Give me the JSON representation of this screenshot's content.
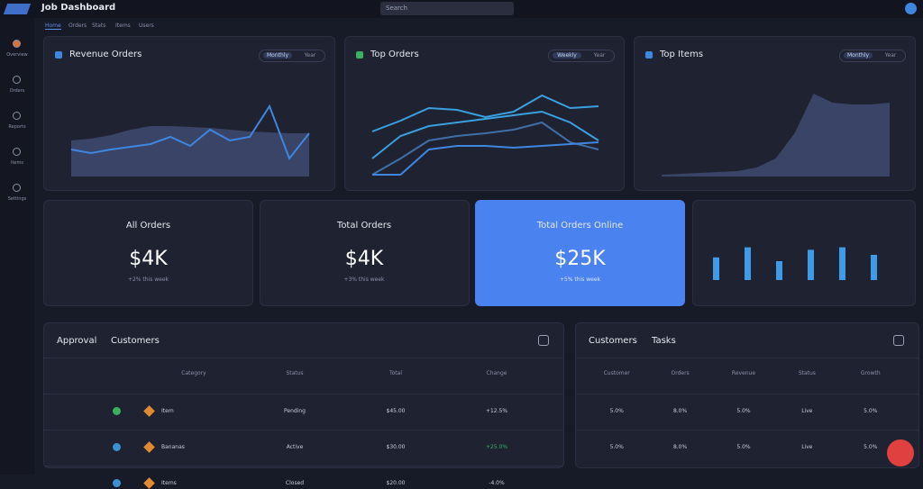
{
  "topbar": {
    "brand": "Job Dashboard",
    "search": "Search"
  },
  "tabs": [
    "Home",
    "Orders",
    "Stats",
    "Items",
    "Users"
  ],
  "sidebar": [
    "Overview",
    "Orders",
    "Reports",
    "Items",
    "Settings"
  ],
  "panels": [
    {
      "title": "Revenue Orders",
      "toggle": [
        "Monthly",
        "Year"
      ],
      "ylim": [
        0,
        100
      ],
      "series": [
        {
          "type": "area",
          "color": "#3a4466",
          "values": [
            40,
            42,
            46,
            52,
            56,
            56,
            55,
            54,
            52,
            50,
            49,
            48,
            48
          ]
        },
        {
          "type": "line",
          "color": "#3f86e0",
          "values": [
            30,
            26,
            30,
            33,
            36,
            44,
            34,
            52,
            40,
            44,
            78,
            20,
            48
          ]
        }
      ]
    },
    {
      "title": "Top Orders",
      "toggle": [
        "Weekly",
        "Year"
      ],
      "ylim": [
        0,
        100
      ],
      "series": [
        {
          "type": "line",
          "color": "#3f6fa8",
          "values": [
            2,
            20,
            40,
            45,
            48,
            52,
            60,
            38,
            30
          ]
        },
        {
          "type": "line",
          "color": "#3aa0e0",
          "values": [
            50,
            62,
            76,
            74,
            66,
            72,
            90,
            76,
            78
          ]
        },
        {
          "type": "line",
          "color": "#3aa0e0",
          "values": [
            20,
            45,
            56,
            60,
            64,
            68,
            72,
            60,
            40
          ]
        },
        {
          "type": "line",
          "color": "#3f86e0",
          "values": [
            2,
            2,
            30,
            34,
            34,
            32,
            34,
            36,
            38
          ]
        }
      ]
    },
    {
      "title": "Top Items",
      "toggle": [
        "Monthly",
        "Year"
      ],
      "ylim": [
        0,
        100
      ],
      "series": [
        {
          "type": "area",
          "color": "#3a4466",
          "values": [
            2,
            3,
            4,
            5,
            6,
            10,
            20,
            48,
            92,
            82,
            80,
            80,
            82
          ]
        }
      ]
    }
  ],
  "cards": [
    {
      "label": "All Orders",
      "value": "$4K",
      "note": "+2% this week"
    },
    {
      "label": "Total Orders",
      "value": "$4K",
      "note": "+3% this week"
    },
    {
      "label": "Total Orders Online",
      "value": "$25K",
      "note": "+5% this week"
    }
  ],
  "bar_panel": {
    "ylim": [
      0,
      100
    ],
    "color": "#3f9be8",
    "values": [
      36,
      52,
      30,
      48,
      52,
      40
    ]
  },
  "tables": [
    {
      "title": "Approval",
      "subtitle": "Customers",
      "columns": [
        "Category",
        "Status",
        "Total",
        "Change"
      ],
      "rows": [
        [
          "Item",
          "Pending",
          "$45.00",
          "+12.5%"
        ],
        [
          "Bananas",
          "Active",
          "$30.00",
          "+25.0%"
        ],
        [
          "Items",
          "Closed",
          "$20.00",
          "-4.0%"
        ]
      ]
    },
    {
      "title": "Customers",
      "subtitle": "Tasks",
      "columns": [
        "Customer",
        "Orders",
        "Revenue",
        "Status",
        "Growth"
      ],
      "rows": [
        [
          "5.0%",
          "8.0%",
          "5.0%",
          "Live",
          "5.0%"
        ],
        [
          "5.0%",
          "8.0%",
          "5.0%",
          "Live",
          "5.0%"
        ]
      ]
    }
  ]
}
